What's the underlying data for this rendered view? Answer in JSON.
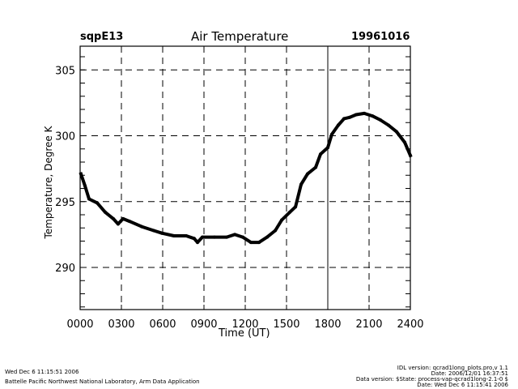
{
  "header": {
    "site": "sqpE13",
    "title": "Air Temperature",
    "date": "19961016"
  },
  "footer": {
    "timestamp": "Wed Dec  6 11:15:51 2006",
    "organization": "Battelle Pacific Northwest National Laboratory, Arm Data Application",
    "idl_version": "IDL version: qcrad1long_plots.pro,v 1.1",
    "idl_date": "Date: 2006/12/01 16:37:51",
    "data_version": "Data version: $State: process-vap-qcrad1long-2.1-0 $",
    "data_date": "Date: Wed Dec  6 11:15:41 2006"
  },
  "chart_data": {
    "type": "line",
    "title": "Air Temperature",
    "xlabel": "Time (UT)",
    "ylabel": "Temperature, Degree K",
    "xlim": [
      0,
      24
    ],
    "ylim": [
      286.8,
      306.8
    ],
    "x_ticks": [
      "0000",
      "0300",
      "0600",
      "0900",
      "1200",
      "1500",
      "1800",
      "2100",
      "2400"
    ],
    "y_ticks": [
      "290",
      "295",
      "300",
      "305"
    ],
    "y_tick_values": [
      290,
      295,
      300,
      305
    ],
    "grid": true,
    "series": [
      {
        "name": "Air Temperature",
        "color": "#000000",
        "x": [
          0.06,
          0.35,
          0.65,
          1.24,
          1.82,
          2.41,
          2.76,
          3.12,
          3.59,
          4.47,
          5.35,
          5.94,
          6.82,
          7.71,
          8.29,
          8.53,
          8.88,
          9.76,
          10.65,
          11.24,
          11.82,
          12.41,
          13.0,
          13.59,
          14.18,
          14.65,
          15.24,
          15.65,
          16.06,
          16.53,
          17.12,
          17.47,
          18.0,
          18.29,
          18.76,
          19.18,
          19.59,
          20.06,
          20.65,
          21.24,
          21.82,
          22.41,
          23.0,
          23.59,
          24.0
        ],
        "y": [
          297.1,
          296.2,
          295.2,
          294.9,
          294.2,
          293.7,
          293.3,
          293.7,
          293.5,
          293.1,
          292.8,
          292.6,
          292.4,
          292.4,
          292.2,
          291.9,
          292.3,
          292.3,
          292.3,
          292.5,
          292.3,
          291.9,
          291.9,
          292.3,
          292.8,
          293.6,
          294.2,
          294.6,
          296.3,
          297.1,
          297.6,
          298.6,
          299.1,
          300.1,
          300.8,
          301.3,
          301.4,
          301.6,
          301.7,
          301.5,
          301.2,
          300.8,
          300.3,
          299.5,
          298.5
        ]
      }
    ]
  }
}
